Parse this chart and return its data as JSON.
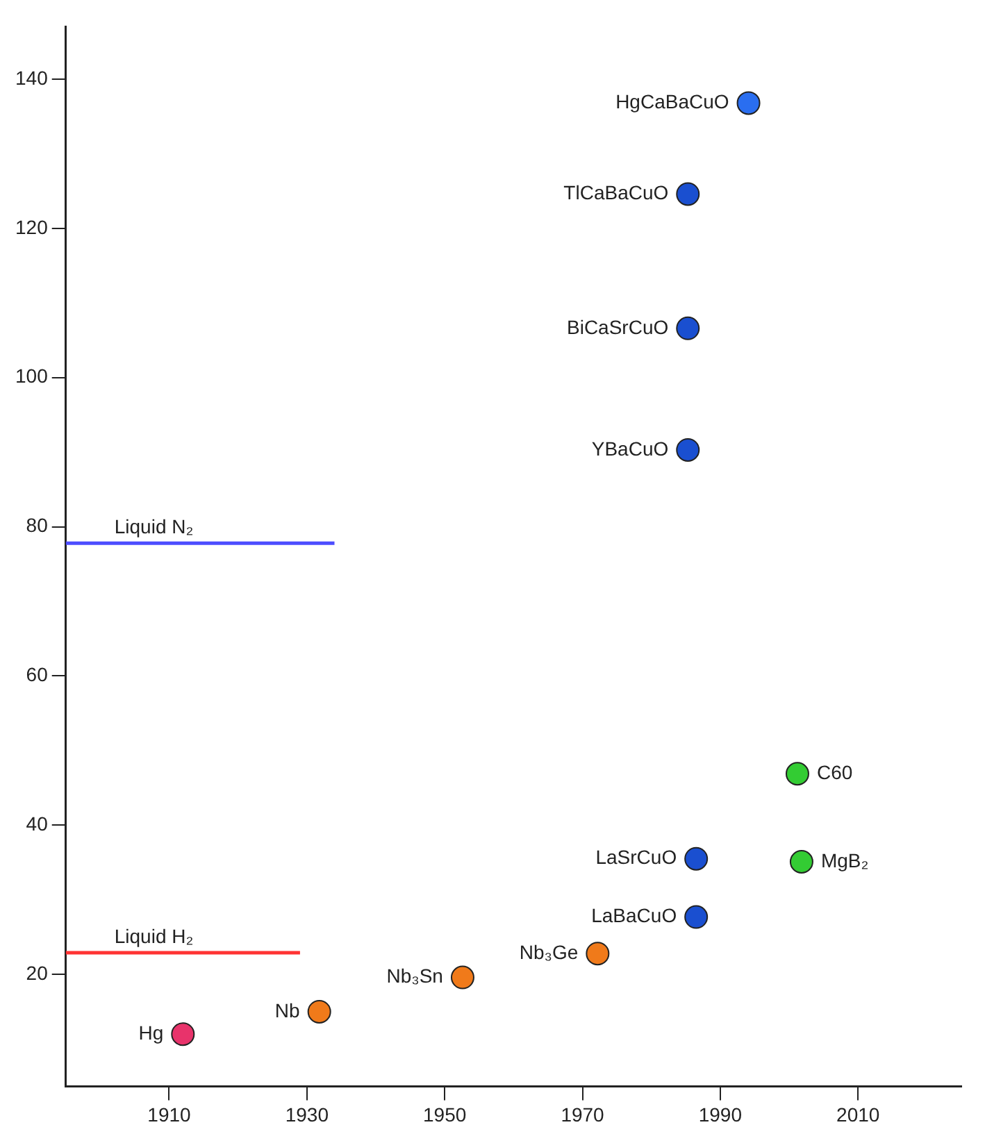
{
  "chart_data": {
    "type": "scatter",
    "xlim": [
      1895,
      2025
    ],
    "ylim": [
      5,
      147
    ],
    "xticks": [
      1910,
      1930,
      1950,
      1970,
      1990,
      2010
    ],
    "yticks": [
      20,
      40,
      60,
      80,
      100,
      120,
      140
    ],
    "grid": false,
    "legend": false,
    "series": [
      {
        "type": "scatter",
        "marker": "circle",
        "x": [
          1912,
          1931.8,
          1952.6,
          1972.2,
          1986.5,
          1986.5,
          1985.3,
          1985.3,
          1985.3,
          1994.1,
          2001.2,
          2001.8
        ],
        "values": [
          12,
          15,
          19.6,
          22.8,
          27.7,
          35.5,
          90.3,
          106.6,
          124.6,
          136.8,
          46.9,
          35.1
        ],
        "colors": [
          "#e8336b",
          "#f07a1a",
          "#f07a1a",
          "#f07a1a",
          "#1a4fd0",
          "#1a4fd0",
          "#1a4fd0",
          "#1a4fd0",
          "#1a4fd0",
          "#2a6ef0",
          "#33cc33",
          "#33cc33"
        ]
      },
      {
        "type": "line",
        "name": "Liquid N₂",
        "color": "#4d4dff",
        "marker": "none",
        "x": [
          1895,
          1934
        ],
        "values": [
          77.8,
          77.8
        ]
      },
      {
        "type": "line",
        "name": "Liquid H₂",
        "color": "#ff3333",
        "marker": "none",
        "x": [
          1895,
          1929
        ],
        "values": [
          22.9,
          22.9
        ]
      }
    ],
    "annotations": [
      {
        "text": "Hg",
        "x": 1912,
        "y": 12
      },
      {
        "text": "Nb",
        "x": 1931.8,
        "y": 15
      },
      {
        "text": "Nb₃Sn",
        "x": 1952.6,
        "y": 19.6
      },
      {
        "text": "Nb₃Ge",
        "x": 1972.2,
        "y": 22.8
      },
      {
        "text": "LaBaCuO",
        "x": 1986.5,
        "y": 27.7
      },
      {
        "text": "LaSrCuO",
        "x": 1986.5,
        "y": 35.5
      },
      {
        "text": "YBaCuO",
        "x": 1985.3,
        "y": 90.3
      },
      {
        "text": "BiCaSrCuO",
        "x": 1985.3,
        "y": 106.6
      },
      {
        "text": "TlCaBaCuO",
        "x": 1985.3,
        "y": 124.6
      },
      {
        "text": "HgCaBaCuO",
        "x": 1994.1,
        "y": 136.8
      },
      {
        "text": "C60",
        "x": 2001.2,
        "y": 46.9
      },
      {
        "text": "MgB₂",
        "x": 2001.8,
        "y": 35.1
      }
    ]
  }
}
